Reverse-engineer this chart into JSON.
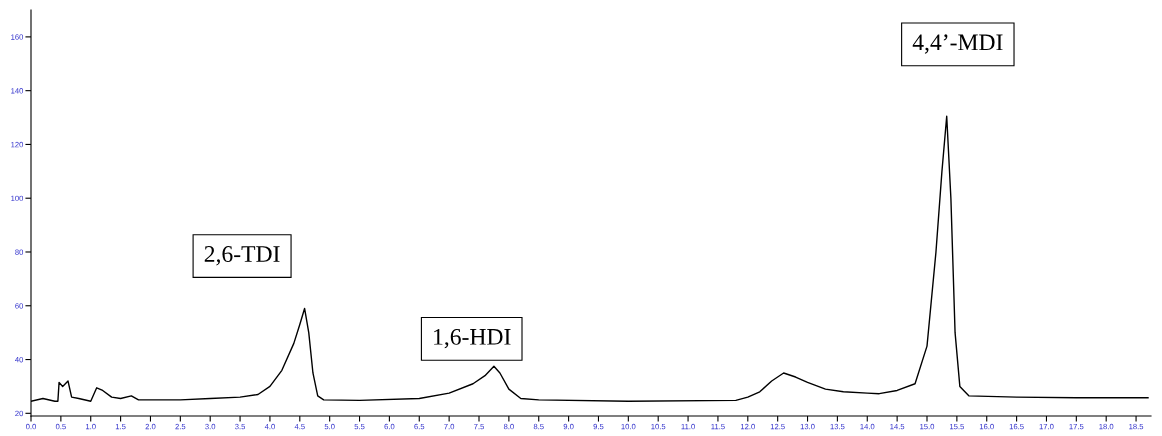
{
  "chart_data": {
    "type": "line",
    "x": [
      0.0,
      0.2,
      0.4,
      0.45,
      0.47,
      0.53,
      0.62,
      0.68,
      0.8,
      1.0,
      1.05,
      1.1,
      1.2,
      1.35,
      1.5,
      1.68,
      1.8,
      2.5,
      3.0,
      3.5,
      3.8,
      4.0,
      4.2,
      4.4,
      4.5,
      4.58,
      4.65,
      4.72,
      4.8,
      4.9,
      5.5,
      6.5,
      7.0,
      7.4,
      7.6,
      7.75,
      7.85,
      8.0,
      8.2,
      8.5,
      10.0,
      11.8,
      12.0,
      12.2,
      12.4,
      12.6,
      12.8,
      13.0,
      13.3,
      13.6,
      14.0,
      14.2,
      14.5,
      14.8,
      15.0,
      15.15,
      15.25,
      15.33,
      15.4,
      15.47,
      15.55,
      15.7,
      16.5,
      17.5,
      18.7
    ],
    "series": [
      {
        "color": "#000000",
        "values": [
          24.5,
          25.5,
          24.5,
          24.5,
          31.5,
          30,
          32,
          26,
          25.5,
          24.5,
          27,
          29.5,
          28.5,
          26,
          25.5,
          26.5,
          25,
          25,
          25.5,
          26,
          27,
          30,
          36,
          46,
          53,
          59,
          50,
          35,
          26.5,
          25,
          24.8,
          25.5,
          27.5,
          31,
          34,
          37.5,
          35,
          29,
          25.5,
          25,
          24.5,
          24.8,
          26,
          28,
          32,
          35,
          33.5,
          31.5,
          29,
          28,
          27.5,
          27.3,
          28.5,
          31,
          45,
          80,
          110,
          130.5,
          100,
          50,
          30,
          26.5,
          26,
          25.8,
          25.8
        ]
      }
    ],
    "xlim": [
      0,
      18.75
    ],
    "ylim": [
      19,
      170
    ],
    "xticks": [
      {
        "value": 0,
        "label": "0.0"
      },
      0.5,
      {
        "value": 1,
        "label": "1.0"
      },
      1.5,
      {
        "value": 2,
        "label": "2.0"
      },
      2.5,
      {
        "value": 3,
        "label": "3.0"
      },
      3.5,
      {
        "value": 4,
        "label": "4.0"
      },
      4.5,
      {
        "value": 5,
        "label": "5.0"
      },
      5.5,
      {
        "value": 6,
        "label": "6.0"
      },
      6.5,
      {
        "value": 7,
        "label": "7.0"
      },
      7.5,
      {
        "value": 8,
        "label": "8.0"
      },
      8.5,
      {
        "value": 9,
        "label": "9.0"
      },
      9.5,
      {
        "value": 10,
        "label": "10.0"
      },
      10.5,
      {
        "value": 11,
        "label": "11.0"
      },
      11.5,
      {
        "value": 12,
        "label": "12.0"
      },
      12.5,
      {
        "value": 13,
        "label": "13.0"
      },
      13.5,
      {
        "value": 14,
        "label": "14.0"
      },
      14.5,
      {
        "value": 15,
        "label": "15.0"
      },
      15.5,
      {
        "value": 16,
        "label": "16.0"
      },
      16.5,
      {
        "value": 17,
        "label": "17.0"
      },
      17.5,
      {
        "value": 18,
        "label": "18.0"
      },
      18.5
    ],
    "yticks": [
      20,
      40,
      60,
      80,
      100,
      120,
      140,
      160
    ],
    "annotations": [
      {
        "text": "2,6-TDI",
        "x": 4.58,
        "y": 59
      },
      {
        "text": "1,6-HDI",
        "x": 7.75,
        "y": 37.5
      },
      {
        "text": "4,4’-MDI",
        "x": 15.33,
        "y": 130.5
      }
    ],
    "grid": false,
    "legend": false
  }
}
